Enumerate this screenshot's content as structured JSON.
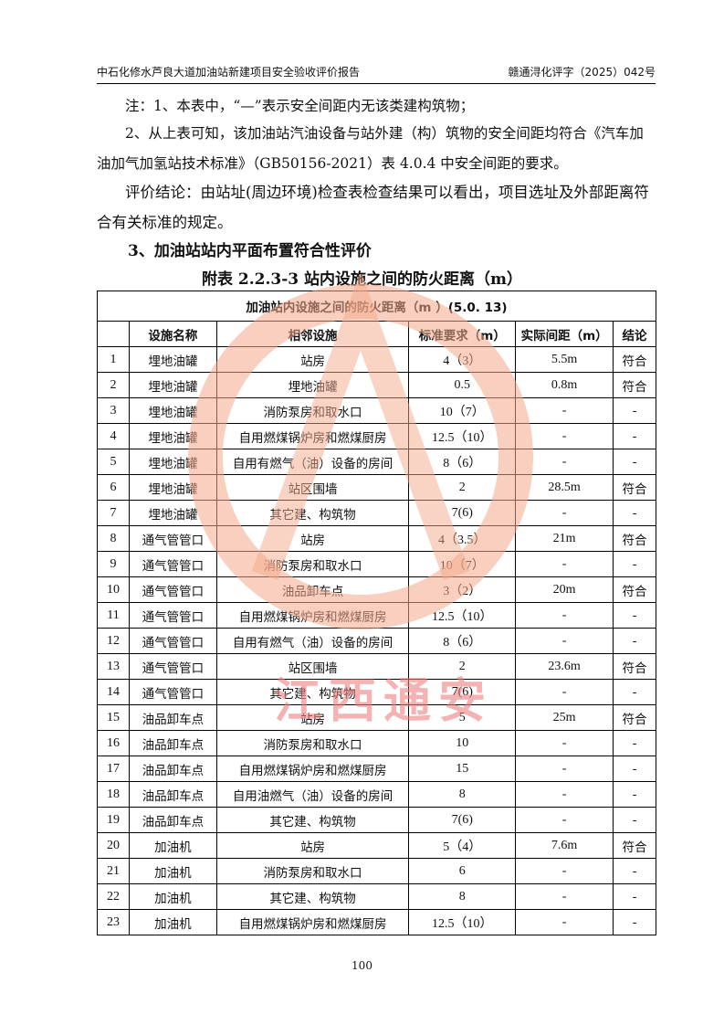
{
  "header": {
    "left": "中石化修水芦良大道加油站新建项目安全验收评价报告",
    "right": "赣通浔化评字（2025）042号"
  },
  "paragraphs": [
    "注：1、本表中，“—”表示安全间距内无该类建构筑物；",
    "2、从上表可知，该加油站汽油设备与站外建（构）筑物的安全间距均符合《汽车加油加气加氢站技术标准》（GB50156-2021）表 4.0.4 中安全间距的要求。",
    "评价结论：由站址(周边环境)检查表检查结果可以看出，项目选址及外部距离符合有关标准的规定。"
  ],
  "section_heading": "3、加油站站内平面布置符合性评价",
  "table_caption": "附表 2.2.3-3  站内设施之间的防火距离（m）",
  "table": {
    "title": "加油站内设施之间的防火距离（m ）(5.0. 13)",
    "columns": [
      "",
      "设施名称",
      "相邻设施",
      "标准要求（m）",
      "实际间距（m）",
      "结论"
    ],
    "rows": [
      [
        "1",
        "埋地油罐",
        "站房",
        "4（3）",
        "5.5m",
        "符合"
      ],
      [
        "2",
        "埋地油罐",
        "埋地油罐",
        "0.5",
        "0.8m",
        "符合"
      ],
      [
        "3",
        "埋地油罐",
        "消防泵房和取水口",
        "10（7）",
        "-",
        "-"
      ],
      [
        "4",
        "埋地油罐",
        "自用燃煤锅炉房和燃煤厨房",
        "12.5（10）",
        "-",
        "-"
      ],
      [
        "5",
        "埋地油罐",
        "自用有燃气（油）设备的房间",
        "8（6）",
        "-",
        "-"
      ],
      [
        "6",
        "埋地油罐",
        "站区围墙",
        "2",
        "28.5m",
        "符合"
      ],
      [
        "7",
        "埋地油罐",
        "其它建、构筑物",
        "7(6)",
        "-",
        "-"
      ],
      [
        "8",
        "通气管管口",
        "站房",
        "4（3.5）",
        "21m",
        "符合"
      ],
      [
        "9",
        "通气管管口",
        "消防泵房和取水口",
        "10（7）",
        "-",
        "-"
      ],
      [
        "10",
        "通气管管口",
        "油品卸车点",
        "3（2）",
        "20m",
        "符合"
      ],
      [
        "11",
        "通气管管口",
        "自用燃煤锅炉房和燃煤厨房",
        "12.5（10）",
        "-",
        "-"
      ],
      [
        "12",
        "通气管管口",
        "自用有燃气（油）设备的房间",
        "8（6）",
        "-",
        "-"
      ],
      [
        "13",
        "通气管管口",
        "站区围墙",
        "2",
        "23.6m",
        "符合"
      ],
      [
        "14",
        "通气管管口",
        "其它建、构筑物",
        "7(6)",
        "-",
        "-"
      ],
      [
        "15",
        "油品卸车点",
        "站房",
        "5",
        "25m",
        "符合"
      ],
      [
        "16",
        "油品卸车点",
        "消防泵房和取水口",
        "10",
        "-",
        "-"
      ],
      [
        "17",
        "油品卸车点",
        "自用燃煤锅炉房和燃煤厨房",
        "15",
        "-",
        "-"
      ],
      [
        "18",
        "油品卸车点",
        "自用油燃气（油）设备的房间",
        "8",
        "-",
        "-"
      ],
      [
        "19",
        "油品卸车点",
        "其它建、构筑物",
        "7(6)",
        "-",
        "-"
      ],
      [
        "20",
        "加油机",
        "站房",
        "5（4）",
        "7.6m",
        "符合"
      ],
      [
        "21",
        "加油机",
        "消防泵房和取水口",
        "6",
        "-",
        "-"
      ],
      [
        "22",
        "加油机",
        "其它建、构筑物",
        "8",
        "-",
        "-"
      ],
      [
        "23",
        "加油机",
        "自用燃煤锅炉房和燃煤厨房",
        "12.5（10）",
        "-",
        "-"
      ]
    ]
  },
  "page_number": "100",
  "watermark": {
    "text": "江西通安",
    "colors": {
      "ring": "#f4a98a",
      "text": "#f08080",
      "letters": "#7fd3f0"
    }
  }
}
